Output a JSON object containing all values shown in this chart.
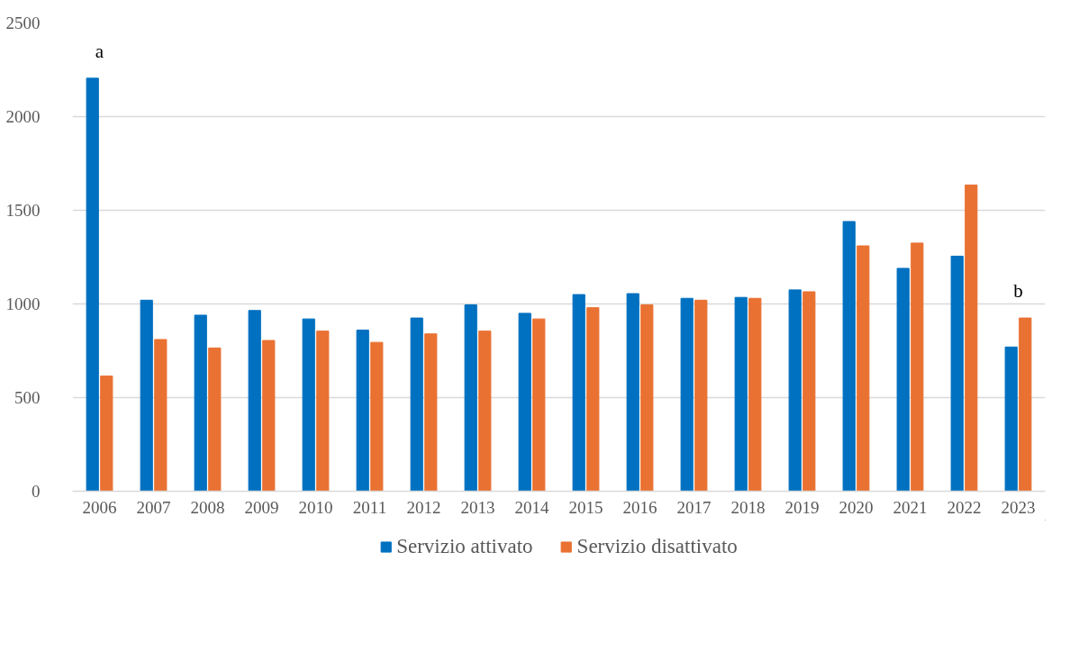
{
  "chart_data": {
    "type": "bar",
    "categories": [
      "2006",
      "2007",
      "2008",
      "2009",
      "2010",
      "2011",
      "2012",
      "2013",
      "2014",
      "2015",
      "2016",
      "2017",
      "2018",
      "2019",
      "2020",
      "2021",
      "2022",
      "2023"
    ],
    "series": [
      {
        "name": "Servizio attivato",
        "color": "#0070c0",
        "values": [
          2205,
          1020,
          940,
          965,
          920,
          860,
          925,
          995,
          950,
          1050,
          1055,
          1030,
          1035,
          1075,
          1440,
          1190,
          1255,
          770
        ]
      },
      {
        "name": "Servizio disattivato",
        "color": "#e97132",
        "values": [
          615,
          810,
          765,
          805,
          855,
          795,
          840,
          855,
          920,
          980,
          995,
          1020,
          1030,
          1065,
          1310,
          1325,
          1635,
          925
        ]
      }
    ],
    "ylim": [
      0,
      2500
    ],
    "yticks": [
      0,
      500,
      1000,
      1500,
      2000,
      2500
    ],
    "grid": "y",
    "legend": "bottom",
    "annotations": [
      "a",
      "b"
    ]
  }
}
